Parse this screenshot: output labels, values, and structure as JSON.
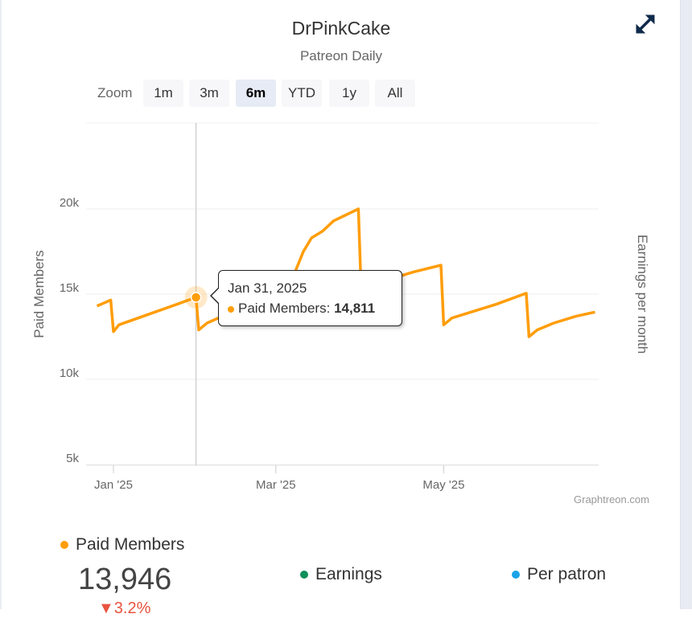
{
  "header": {
    "title": "DrPinkCake",
    "subtitle": "Patreon Daily",
    "fullscreen_icon": "expand-arrows-icon"
  },
  "zoom": {
    "label": "Zoom",
    "buttons": [
      "1m",
      "3m",
      "6m",
      "YTD",
      "1y",
      "All"
    ],
    "selected": "6m"
  },
  "tooltip": {
    "date": "Jan 31, 2025",
    "series": "Paid Members:",
    "value": "14,811"
  },
  "credit": "Graphtreon.com",
  "colors": {
    "members": "#ff9d0a",
    "earnings": "#10905a",
    "per_patron": "#1aa3e8"
  },
  "stats": {
    "members": {
      "label": "Paid Members",
      "value": "13,946",
      "change": "▼3.2%"
    },
    "earnings": {
      "label": "Earnings"
    },
    "per_patron": {
      "label": "Per patron"
    }
  },
  "chart_data": {
    "type": "line",
    "title": "DrPinkCake",
    "subtitle": "Patreon Daily",
    "ylabel": "Paid Members",
    "ylabel_right": "Earnings per month",
    "ylim": [
      5000,
      20000
    ],
    "yticks": [
      {
        "v": 5000,
        "label": "5k"
      },
      {
        "v": 10000,
        "label": "10k"
      },
      {
        "v": 15000,
        "label": "15k"
      },
      {
        "v": 20000,
        "label": "20k"
      }
    ],
    "xticks": [
      {
        "date": "2025-01-01",
        "label": "Jan '25"
      },
      {
        "date": "2025-03-01",
        "label": "Mar '25"
      },
      {
        "date": "2025-05-01",
        "label": "May '25"
      }
    ],
    "highlight": {
      "date": "2025-01-31",
      "value": 14811
    },
    "series": [
      {
        "name": "Paid Members",
        "points": [
          [
            "2024-12-26",
            14300
          ],
          [
            "2024-12-31",
            14650
          ],
          [
            "2025-01-01",
            12800
          ],
          [
            "2025-01-03",
            13200
          ],
          [
            "2025-01-10",
            13600
          ],
          [
            "2025-01-17",
            14000
          ],
          [
            "2025-01-24",
            14400
          ],
          [
            "2025-01-31",
            14811
          ],
          [
            "2025-02-01",
            12900
          ],
          [
            "2025-02-04",
            13300
          ],
          [
            "2025-02-11",
            13800
          ],
          [
            "2025-02-18",
            14300
          ],
          [
            "2025-02-25",
            15000
          ],
          [
            "2025-03-04",
            15700
          ],
          [
            "2025-03-08",
            16300
          ],
          [
            "2025-03-11",
            17500
          ],
          [
            "2025-03-14",
            18300
          ],
          [
            "2025-03-18",
            18700
          ],
          [
            "2025-03-22",
            19300
          ],
          [
            "2025-03-31",
            20000
          ],
          [
            "2025-04-01",
            15300
          ],
          [
            "2025-04-05",
            15600
          ],
          [
            "2025-04-12",
            15900
          ],
          [
            "2025-04-20",
            16300
          ],
          [
            "2025-04-30",
            16700
          ],
          [
            "2025-05-01",
            13200
          ],
          [
            "2025-05-04",
            13600
          ],
          [
            "2025-05-10",
            13900
          ],
          [
            "2025-05-20",
            14400
          ],
          [
            "2025-05-31",
            15050
          ],
          [
            "2025-06-01",
            12500
          ],
          [
            "2025-06-04",
            12900
          ],
          [
            "2025-06-10",
            13300
          ],
          [
            "2025-06-18",
            13700
          ],
          [
            "2025-06-25",
            13946
          ]
        ]
      }
    ]
  }
}
